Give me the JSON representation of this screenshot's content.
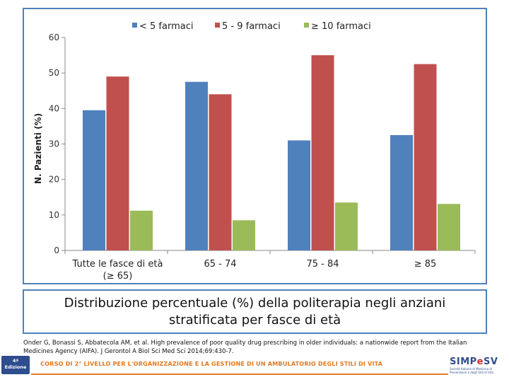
{
  "chart_data": {
    "type": "bar",
    "categories": [
      "Tutte le fasce di età\n(≥ 65)",
      "65 - 74",
      "75 - 84",
      "≥ 85"
    ],
    "series": [
      {
        "name": "< 5 farmaci",
        "color": "#4f81bd",
        "values": [
          39.5,
          47.5,
          31.0,
          32.5
        ]
      },
      {
        "name": "5 - 9 farmaci",
        "color": "#c0504d",
        "values": [
          49.0,
          44.0,
          55.0,
          52.5
        ]
      },
      {
        "name": "≥ 10 farmaci",
        "color": "#9bbb59",
        "values": [
          11.2,
          8.5,
          13.5,
          13.1
        ]
      }
    ],
    "ylabel": "N. Pazienti (%)",
    "xlabel": "",
    "ylim": [
      0,
      60
    ],
    "yticks": [
      0,
      10,
      20,
      30,
      40,
      50,
      60
    ],
    "legend_position": "top"
  },
  "caption": {
    "line1": "Distribuzione percentuale (%) della politerapia negli anziani",
    "line2": "stratificata per fasce di età"
  },
  "reference": "Onder G, Bonassi S, Abbatecola AM, et al. High prevalence of poor quality drug prescribing in older individuals: a nationwide report from the Italian Medicines Agency (AIFA). J Gerontol A Biol Sci Med Sci 2014;69:430-7.",
  "footer": {
    "badge_line1": "4ª",
    "badge_line2": "Edizione",
    "course_title": "CORSO DI 2° LIVELLO PER L'ORGANIZZAZIONE E LA GESTIONE DI UN AMBULATORIO DEGLI STILI DI VITA",
    "logo_part1": "SIMP",
    "logo_part2": "e",
    "logo_part3": "SV",
    "logo_subtitle": "Società Italiana di Medicina di Prevenzione e degli Stili di Vita"
  }
}
